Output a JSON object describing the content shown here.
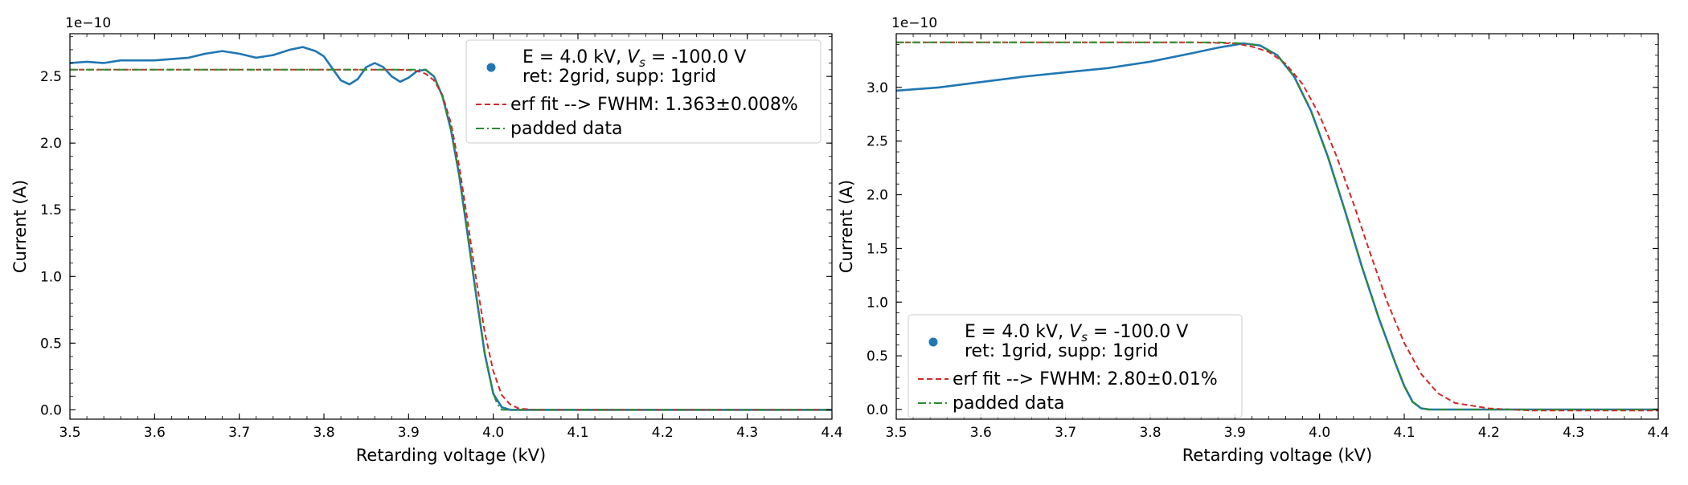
{
  "chart_data": [
    {
      "type": "line",
      "offset_text": "1e−10",
      "xlabel": "Retarding voltage (kV)",
      "ylabel": "Current (A)",
      "xlim": [
        3.5,
        4.4
      ],
      "ylim": [
        -0.07,
        2.82
      ],
      "xticks": [
        "3.5",
        "3.6",
        "3.7",
        "3.8",
        "3.9",
        "4.0",
        "4.1",
        "4.2",
        "4.3",
        "4.4"
      ],
      "yticks": [
        "0.0",
        "0.5",
        "1.0",
        "1.5",
        "2.0",
        "2.5"
      ],
      "legend_position": "upper right",
      "legend": {
        "data_line1_main": "E = 4.0 kV, ",
        "data_line1_var": "V",
        "data_line1_sub": "s",
        "data_line1_tail": " = -100.0 V",
        "data_line2": "ret: 2grid, supp: 1grid",
        "fit": "erf fit --> FWHM: 1.363±0.008%",
        "padded": "padded data"
      },
      "series": [
        {
          "name": "data",
          "color": "#1f77b4",
          "x": [
            3.5,
            3.52,
            3.54,
            3.56,
            3.58,
            3.6,
            3.62,
            3.64,
            3.66,
            3.68,
            3.7,
            3.72,
            3.74,
            3.76,
            3.775,
            3.79,
            3.8,
            3.81,
            3.82,
            3.83,
            3.84,
            3.85,
            3.86,
            3.87,
            3.88,
            3.89,
            3.9,
            3.91,
            3.92,
            3.93,
            3.94,
            3.95,
            3.96,
            3.97,
            3.98,
            3.99,
            4.0,
            4.01,
            4.02,
            4.04,
            4.1,
            4.2,
            4.3,
            4.4
          ],
          "y": [
            2.6,
            2.61,
            2.6,
            2.62,
            2.62,
            2.62,
            2.63,
            2.64,
            2.67,
            2.69,
            2.67,
            2.64,
            2.66,
            2.7,
            2.72,
            2.69,
            2.65,
            2.56,
            2.47,
            2.44,
            2.48,
            2.57,
            2.6,
            2.57,
            2.5,
            2.46,
            2.49,
            2.54,
            2.55,
            2.5,
            2.35,
            2.1,
            1.75,
            1.3,
            0.85,
            0.42,
            0.12,
            0.02,
            0.0,
            0.0,
            0.0,
            0.0,
            0.0,
            0.0
          ]
        },
        {
          "name": "erf fit --> FWHM: 1.363±0.008%",
          "color": "#d62728",
          "x": [
            3.5,
            3.88,
            3.9,
            3.91,
            3.92,
            3.93,
            3.94,
            3.95,
            3.96,
            3.97,
            3.98,
            3.99,
            4.0,
            4.01,
            4.02,
            4.03,
            4.05,
            4.1,
            4.4
          ],
          "y": [
            2.55,
            2.55,
            2.548,
            2.54,
            2.52,
            2.47,
            2.36,
            2.15,
            1.82,
            1.4,
            0.97,
            0.58,
            0.29,
            0.11,
            0.04,
            0.01,
            0.0,
            0.0,
            0.0
          ]
        },
        {
          "name": "padded data",
          "color": "#2e8b2e",
          "x": [
            3.5,
            3.9,
            3.92,
            3.93,
            3.94,
            3.95,
            3.96,
            3.97,
            3.98,
            3.99,
            4.0,
            4.005,
            4.01,
            4.02,
            4.4
          ],
          "y": [
            2.55,
            2.55,
            2.55,
            2.5,
            2.35,
            2.1,
            1.75,
            1.3,
            0.85,
            0.42,
            0.12,
            0.04,
            0.0,
            0.0,
            0.0
          ]
        }
      ]
    },
    {
      "type": "line",
      "offset_text": "1e−10",
      "xlabel": "Retarding voltage (kV)",
      "ylabel": "Current (A)",
      "xlim": [
        3.5,
        4.4
      ],
      "ylim": [
        -0.09,
        3.5
      ],
      "xticks": [
        "3.5",
        "3.6",
        "3.7",
        "3.8",
        "3.9",
        "4.0",
        "4.1",
        "4.2",
        "4.3",
        "4.4"
      ],
      "yticks": [
        "0.0",
        "0.5",
        "1.0",
        "1.5",
        "2.0",
        "2.5",
        "3.0"
      ],
      "legend_position": "lower left",
      "legend": {
        "data_line1_main": "E = 4.0 kV, ",
        "data_line1_var": "V",
        "data_line1_sub": "s",
        "data_line1_tail": " = -100.0 V",
        "data_line2": "ret: 1grid, supp: 1grid",
        "fit": "erf fit --> FWHM: 2.80±0.01%",
        "padded": "padded data"
      },
      "series": [
        {
          "name": "data",
          "color": "#1f77b4",
          "x": [
            3.5,
            3.55,
            3.6,
            3.65,
            3.7,
            3.75,
            3.8,
            3.85,
            3.88,
            3.91,
            3.93,
            3.95,
            3.97,
            3.99,
            4.01,
            4.03,
            4.05,
            4.07,
            4.09,
            4.1,
            4.11,
            4.12,
            4.13,
            4.2,
            4.3,
            4.4
          ],
          "y": [
            2.97,
            3.0,
            3.05,
            3.1,
            3.14,
            3.18,
            3.24,
            3.32,
            3.37,
            3.41,
            3.39,
            3.3,
            3.1,
            2.78,
            2.35,
            1.85,
            1.33,
            0.85,
            0.42,
            0.22,
            0.07,
            0.01,
            0.0,
            0.0,
            0.0,
            0.0
          ]
        },
        {
          "name": "erf fit --> FWHM: 2.80±0.01%",
          "color": "#d62728",
          "x": [
            3.5,
            3.85,
            3.9,
            3.92,
            3.94,
            3.96,
            3.98,
            4.0,
            4.02,
            4.04,
            4.06,
            4.08,
            4.1,
            4.12,
            4.14,
            4.16,
            4.2,
            4.25,
            4.4
          ],
          "y": [
            3.42,
            3.42,
            3.41,
            3.38,
            3.33,
            3.22,
            3.03,
            2.74,
            2.36,
            1.92,
            1.45,
            1.0,
            0.62,
            0.33,
            0.15,
            0.06,
            0.01,
            -0.01,
            -0.01
          ],
          "dash": true
        },
        {
          "name": "padded data",
          "color": "#2e8b2e",
          "x": [
            3.5,
            3.88,
            3.91,
            3.93,
            3.95,
            3.97,
            3.99,
            4.01,
            4.03,
            4.05,
            4.07,
            4.09,
            4.1,
            4.11,
            4.12,
            4.13,
            4.4
          ],
          "y": [
            3.42,
            3.42,
            3.41,
            3.39,
            3.3,
            3.1,
            2.78,
            2.35,
            1.85,
            1.33,
            0.85,
            0.42,
            0.22,
            0.07,
            0.01,
            0.0,
            0.0
          ]
        }
      ]
    }
  ]
}
